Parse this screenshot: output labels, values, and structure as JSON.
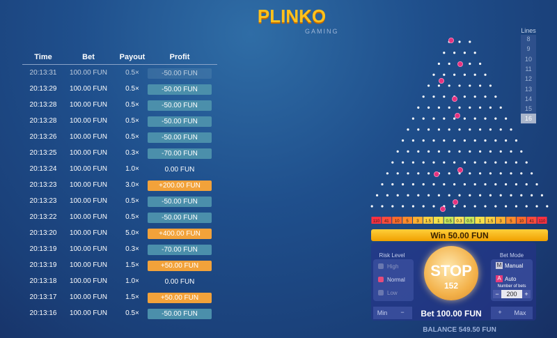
{
  "logo": {
    "title": "PLINKO",
    "subtitle": "GAMING"
  },
  "history": {
    "headers": [
      "Time",
      "Bet",
      "Payout",
      "Profit"
    ],
    "rows": [
      [
        "20:13:31",
        "100.00 FUN",
        "0.5×",
        "-50.00 FUN"
      ],
      [
        "20:13:29",
        "100.00 FUN",
        "0.5×",
        "-50.00 FUN"
      ],
      [
        "20:13:28",
        "100.00 FUN",
        "0.5×",
        "-50.00 FUN"
      ],
      [
        "20:13:28",
        "100.00 FUN",
        "0.5×",
        "-50.00 FUN"
      ],
      [
        "20:13:26",
        "100.00 FUN",
        "0.5×",
        "-50.00 FUN"
      ],
      [
        "20:13:25",
        "100.00 FUN",
        "0.3×",
        "-70.00 FUN"
      ],
      [
        "20:13:24",
        "100.00 FUN",
        "1.0×",
        "0.00 FUN"
      ],
      [
        "20:13:23",
        "100.00 FUN",
        "3.0×",
        "+200.00 FUN"
      ],
      [
        "20:13:23",
        "100.00 FUN",
        "0.5×",
        "-50.00 FUN"
      ],
      [
        "20:13:22",
        "100.00 FUN",
        "0.5×",
        "-50.00 FUN"
      ],
      [
        "20:13:20",
        "100.00 FUN",
        "5.0×",
        "+400.00 FUN"
      ],
      [
        "20:13:19",
        "100.00 FUN",
        "0.3×",
        "-70.00 FUN"
      ],
      [
        "20:13:19",
        "100.00 FUN",
        "1.5×",
        "+50.00 FUN"
      ],
      [
        "20:13:18",
        "100.00 FUN",
        "1.0×",
        "0.00 FUN"
      ],
      [
        "20:13:17",
        "100.00 FUN",
        "1.5×",
        "+50.00 FUN"
      ],
      [
        "20:13:16",
        "100.00 FUN",
        "0.5×",
        "-50.00 FUN"
      ]
    ]
  },
  "lines": {
    "label": "Lines",
    "options": [
      8,
      9,
      10,
      11,
      12,
      13,
      14,
      15,
      16
    ]
  },
  "multipliers": [
    110,
    41,
    10,
    5,
    3,
    1.5,
    1,
    0.5,
    0.3,
    0.5,
    1,
    1.5,
    3,
    5,
    10,
    41,
    110
  ],
  "win": "Win 50.00 FUN",
  "risk": {
    "label": "Risk Level",
    "options": [
      "High",
      "Normal",
      "Low"
    ]
  },
  "stop": {
    "label": "STOP",
    "count": 152
  },
  "bet_mode": {
    "label": "Bet Mode",
    "manual_key": "M",
    "manual": "Manual",
    "auto_key": "A",
    "auto": "Auto",
    "number_label": "Number of bets",
    "number": 200,
    "minus": "−",
    "plus": "+"
  },
  "bet": {
    "min": "Min",
    "minus": "−",
    "amount": "Bet 100.00 FUN",
    "plus": "+",
    "max": "Max"
  },
  "balance": "BALANCE 549.50 FUN"
}
